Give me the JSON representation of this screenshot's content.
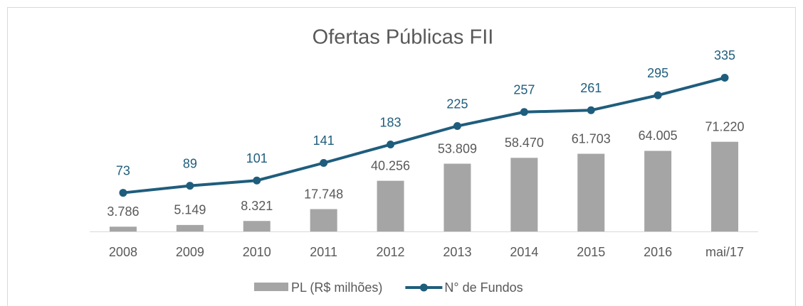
{
  "chart_data": {
    "type": "combo",
    "title": "Ofertas Públicas FII",
    "categories": [
      "2008",
      "2009",
      "2010",
      "2011",
      "2012",
      "2013",
      "2014",
      "2015",
      "2016",
      "mai/17"
    ],
    "series": [
      {
        "name": "PL (R$ milhões)",
        "type": "bar",
        "color": "#a5a5a5",
        "values": [
          3786,
          5149,
          8321,
          17748,
          40256,
          53809,
          58470,
          61703,
          64005,
          71220
        ],
        "value_labels": [
          "3.786",
          "5.149",
          "8.321",
          "17.748",
          "40.256",
          "53.809",
          "58.470",
          "61.703",
          "64.005",
          "71.220"
        ]
      },
      {
        "name": "N° de Fundos",
        "type": "line",
        "axis": "y2",
        "color": "#1f5d7d",
        "values": [
          73,
          89,
          101,
          141,
          183,
          225,
          257,
          261,
          295,
          335
        ]
      }
    ],
    "ylim": [
      0,
      150000
    ],
    "y2lim": [
      -15,
      415
    ],
    "legend": "bottom"
  }
}
